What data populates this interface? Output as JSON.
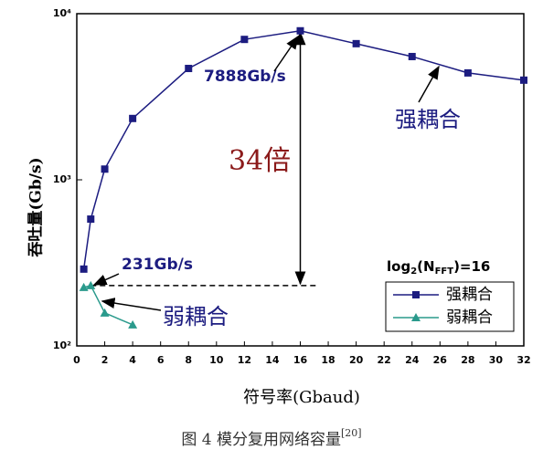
{
  "chart_data": {
    "type": "line",
    "x_label": "符号率(Gbaud)",
    "y_label": "吞吐量(Gb/s)",
    "caption": "图 4 模分复用网络容量",
    "caption_ref": "[20]",
    "x": [
      0.5,
      1,
      2,
      4,
      8,
      12,
      16,
      20,
      24,
      28,
      32
    ],
    "series": [
      {
        "name": "强耦合",
        "color": "#1c1c80",
        "marker": "square",
        "values": [
          290,
          580,
          1160,
          2340,
          4680,
          7000,
          7888,
          6600,
          5520,
          4400,
          3980
        ]
      },
      {
        "name": "弱耦合",
        "color": "#2a9a8c",
        "marker": "triangle",
        "values": [
          225,
          231,
          158,
          134,
          null,
          null,
          null,
          null,
          null,
          null,
          null
        ]
      }
    ],
    "xlim": [
      0,
      32
    ],
    "xticks": [
      0,
      2,
      4,
      6,
      8,
      10,
      12,
      14,
      16,
      18,
      20,
      22,
      24,
      26,
      28,
      30,
      32
    ],
    "ylim": [
      100,
      10000
    ],
    "log_y": true,
    "yticks": [
      {
        "value": 100,
        "label": "10²"
      },
      {
        "value": 1000,
        "label": "10³"
      },
      {
        "value": 10000,
        "label": "10⁴"
      }
    ],
    "legend": "lower right",
    "annotations": {
      "peak": "7888Gb/s",
      "low": "231Gb/s",
      "ratio": "34倍",
      "strong": "强耦合",
      "weak": "弱耦合",
      "log_text": {
        "base": "log",
        "sub": "2",
        "open": "(N",
        "sub2": "FFT",
        "close": ")=16"
      }
    }
  }
}
